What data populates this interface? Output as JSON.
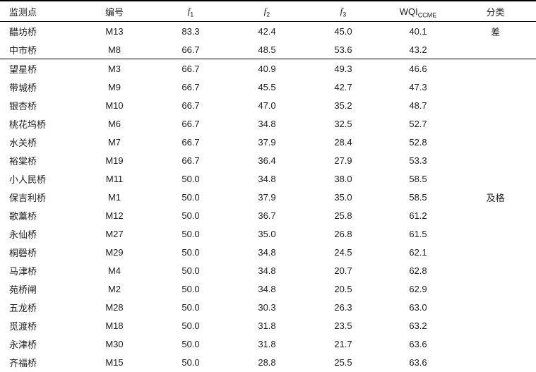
{
  "table": {
    "columns": [
      {
        "key": "site",
        "base": "监测点",
        "italic": false
      },
      {
        "key": "id",
        "base": "编号",
        "italic": false
      },
      {
        "key": "f1",
        "base": "f",
        "sub": "1",
        "italic": true
      },
      {
        "key": "f2",
        "base": "f",
        "sub": "2",
        "italic": true
      },
      {
        "key": "f3",
        "base": "f",
        "sub": "3",
        "italic": true
      },
      {
        "key": "wqi",
        "base": "WQI",
        "sub": "CCME",
        "italic": false
      },
      {
        "key": "category",
        "base": "分类",
        "italic": false
      }
    ],
    "rows": [
      {
        "site": "醋坊桥",
        "id": "M13",
        "f1": "83.3",
        "f2": "42.4",
        "f3": "45.0",
        "wqi": "40.1",
        "category": "差",
        "group_end": false
      },
      {
        "site": "中市桥",
        "id": "M8",
        "f1": "66.7",
        "f2": "48.5",
        "f3": "53.6",
        "wqi": "43.2",
        "category": "",
        "group_end": true
      },
      {
        "site": "望星桥",
        "id": "M3",
        "f1": "66.7",
        "f2": "40.9",
        "f3": "49.3",
        "wqi": "46.6",
        "category": "",
        "group_end": false
      },
      {
        "site": "带城桥",
        "id": "M9",
        "f1": "66.7",
        "f2": "45.5",
        "f3": "42.7",
        "wqi": "47.3",
        "category": "",
        "group_end": false
      },
      {
        "site": "银杏桥",
        "id": "M10",
        "f1": "66.7",
        "f2": "47.0",
        "f3": "35.2",
        "wqi": "48.7",
        "category": "",
        "group_end": false
      },
      {
        "site": "桃花坞桥",
        "id": "M6",
        "f1": "66.7",
        "f2": "34.8",
        "f3": "32.5",
        "wqi": "52.7",
        "category": "",
        "group_end": false
      },
      {
        "site": "水关桥",
        "id": "M7",
        "f1": "66.7",
        "f2": "37.9",
        "f3": "28.4",
        "wqi": "52.8",
        "category": "",
        "group_end": false
      },
      {
        "site": "裕棠桥",
        "id": "M19",
        "f1": "66.7",
        "f2": "36.4",
        "f3": "27.9",
        "wqi": "53.3",
        "category": "",
        "group_end": false
      },
      {
        "site": "小人民桥",
        "id": "M11",
        "f1": "50.0",
        "f2": "34.8",
        "f3": "38.0",
        "wqi": "58.5",
        "category": "",
        "group_end": false
      },
      {
        "site": "保吉利桥",
        "id": "M1",
        "f1": "50.0",
        "f2": "37.9",
        "f3": "35.0",
        "wqi": "58.5",
        "category": "及格",
        "group_end": false
      },
      {
        "site": "歌薰桥",
        "id": "M12",
        "f1": "50.0",
        "f2": "36.7",
        "f3": "25.8",
        "wqi": "61.2",
        "category": "",
        "group_end": false
      },
      {
        "site": "永仙桥",
        "id": "M27",
        "f1": "50.0",
        "f2": "35.0",
        "f3": "26.8",
        "wqi": "61.5",
        "category": "",
        "group_end": false
      },
      {
        "site": "桐磬桥",
        "id": "M29",
        "f1": "50.0",
        "f2": "34.8",
        "f3": "24.5",
        "wqi": "62.1",
        "category": "",
        "group_end": false
      },
      {
        "site": "马津桥",
        "id": "M4",
        "f1": "50.0",
        "f2": "34.8",
        "f3": "20.7",
        "wqi": "62.8",
        "category": "",
        "group_end": false
      },
      {
        "site": "苑桥闸",
        "id": "M2",
        "f1": "50.0",
        "f2": "34.8",
        "f3": "20.5",
        "wqi": "62.9",
        "category": "",
        "group_end": false
      },
      {
        "site": "五龙桥",
        "id": "M28",
        "f1": "50.0",
        "f2": "30.3",
        "f3": "26.3",
        "wqi": "63.0",
        "category": "",
        "group_end": false
      },
      {
        "site": "觅渡桥",
        "id": "M18",
        "f1": "50.0",
        "f2": "31.8",
        "f3": "23.5",
        "wqi": "63.2",
        "category": "",
        "group_end": false
      },
      {
        "site": "永津桥",
        "id": "M30",
        "f1": "50.0",
        "f2": "31.8",
        "f3": "21.7",
        "wqi": "63.6",
        "category": "",
        "group_end": false
      },
      {
        "site": "齐福桥",
        "id": "M15",
        "f1": "50.0",
        "f2": "28.8",
        "f3": "25.5",
        "wqi": "63.6",
        "category": "",
        "group_end": false
      }
    ]
  },
  "chart_data": {
    "type": "table",
    "title": "",
    "columns": [
      "监测点",
      "编号",
      "f1",
      "f2",
      "f3",
      "WQI_CCME",
      "分类"
    ],
    "rows": [
      [
        "醋坊桥",
        "M13",
        83.3,
        42.4,
        45.0,
        40.1,
        "差"
      ],
      [
        "中市桥",
        "M8",
        66.7,
        48.5,
        53.6,
        43.2,
        ""
      ],
      [
        "望星桥",
        "M3",
        66.7,
        40.9,
        49.3,
        46.6,
        ""
      ],
      [
        "带城桥",
        "M9",
        66.7,
        45.5,
        42.7,
        47.3,
        ""
      ],
      [
        "银杏桥",
        "M10",
        66.7,
        47.0,
        35.2,
        48.7,
        ""
      ],
      [
        "桃花坞桥",
        "M6",
        66.7,
        34.8,
        32.5,
        52.7,
        ""
      ],
      [
        "水关桥",
        "M7",
        66.7,
        37.9,
        28.4,
        52.8,
        ""
      ],
      [
        "裕棠桥",
        "M19",
        66.7,
        36.4,
        27.9,
        53.3,
        ""
      ],
      [
        "小人民桥",
        "M11",
        50.0,
        34.8,
        38.0,
        58.5,
        ""
      ],
      [
        "保吉利桥",
        "M1",
        50.0,
        37.9,
        35.0,
        58.5,
        "及格"
      ],
      [
        "歌薰桥",
        "M12",
        50.0,
        36.7,
        25.8,
        61.2,
        ""
      ],
      [
        "永仙桥",
        "M27",
        50.0,
        35.0,
        26.8,
        61.5,
        ""
      ],
      [
        "桐磬桥",
        "M29",
        50.0,
        34.8,
        24.5,
        62.1,
        ""
      ],
      [
        "马津桥",
        "M4",
        50.0,
        34.8,
        20.7,
        62.8,
        ""
      ],
      [
        "苑桥闸",
        "M2",
        50.0,
        34.8,
        20.5,
        62.9,
        ""
      ],
      [
        "五龙桥",
        "M28",
        50.0,
        30.3,
        26.3,
        63.0,
        ""
      ],
      [
        "觅渡桥",
        "M18",
        50.0,
        31.8,
        23.5,
        63.2,
        ""
      ],
      [
        "永津桥",
        "M30",
        50.0,
        31.8,
        21.7,
        63.6,
        ""
      ],
      [
        "齐福桥",
        "M15",
        50.0,
        28.8,
        25.5,
        63.6,
        ""
      ]
    ]
  },
  "colors": {
    "text": "#1c1c1c",
    "rule": "#000000",
    "background": "#ffffff"
  }
}
